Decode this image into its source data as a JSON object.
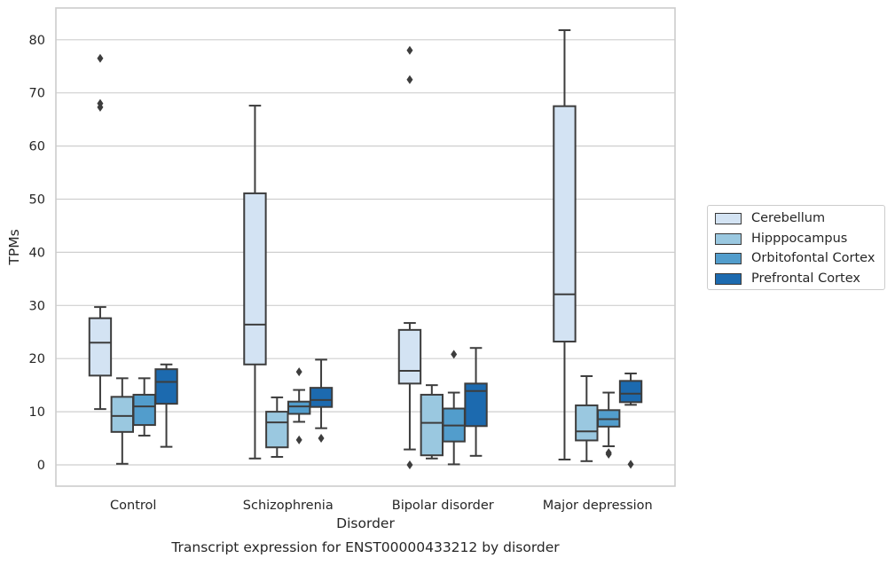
{
  "chart_data": {
    "type": "boxplot",
    "title": "",
    "caption": "Transcript expression for ENST00000433212 by disorder",
    "xlabel": "Disorder",
    "ylabel": "TPMs",
    "ylim": [
      -4,
      86
    ],
    "yticks": [
      0,
      10,
      20,
      30,
      40,
      50,
      60,
      70,
      80
    ],
    "grid": "horizontal",
    "legend_position": "right",
    "categories": [
      "Control",
      "Schizophrenia",
      "Bipolar disorder",
      "Major depression"
    ],
    "series": [
      {
        "name": "Cerebellum",
        "color": "#d3e3f3",
        "boxes": [
          {
            "whislo": 10.5,
            "q1": 16.8,
            "med": 23.0,
            "q3": 27.6,
            "whishi": 29.7,
            "fliers": [
              67.3,
              68.0,
              76.5
            ]
          },
          {
            "whislo": 1.2,
            "q1": 18.9,
            "med": 26.4,
            "q3": 51.1,
            "whishi": 67.6,
            "fliers": []
          },
          {
            "whislo": 2.9,
            "q1": 15.3,
            "med": 17.7,
            "q3": 25.4,
            "whishi": 26.7,
            "fliers": [
              0.0,
              72.5,
              78.0
            ]
          },
          {
            "whislo": 1.0,
            "q1": 23.2,
            "med": 32.1,
            "q3": 67.5,
            "whishi": 81.8,
            "fliers": []
          }
        ]
      },
      {
        "name": "Hipppocampus",
        "color": "#9ac8e0",
        "boxes": [
          {
            "whislo": 0.2,
            "q1": 6.2,
            "med": 9.2,
            "q3": 12.8,
            "whishi": 16.3,
            "fliers": []
          },
          {
            "whislo": 1.5,
            "q1": 3.3,
            "med": 8.0,
            "q3": 10.0,
            "whishi": 12.7,
            "fliers": []
          },
          {
            "whislo": 1.2,
            "q1": 1.8,
            "med": 7.9,
            "q3": 13.2,
            "whishi": 15.0,
            "fliers": []
          },
          {
            "whislo": 0.7,
            "q1": 4.6,
            "med": 6.3,
            "q3": 11.2,
            "whishi": 16.7,
            "fliers": []
          }
        ]
      },
      {
        "name": "Orbitofontal Cortex",
        "color": "#529dcc",
        "boxes": [
          {
            "whislo": 5.5,
            "q1": 7.5,
            "med": 11.0,
            "q3": 13.2,
            "whishi": 16.3,
            "fliers": []
          },
          {
            "whislo": 8.1,
            "q1": 9.6,
            "med": 11.0,
            "q3": 11.9,
            "whishi": 14.1,
            "fliers": [
              4.7,
              17.5
            ]
          },
          {
            "whislo": 0.1,
            "q1": 4.4,
            "med": 7.4,
            "q3": 10.6,
            "whishi": 13.6,
            "fliers": [
              20.8
            ]
          },
          {
            "whislo": 3.5,
            "q1": 7.2,
            "med": 8.6,
            "q3": 10.3,
            "whishi": 13.6,
            "fliers": [
              2.0,
              2.3
            ]
          }
        ]
      },
      {
        "name": "Prefrontal Cortex",
        "color": "#1c6aaf",
        "boxes": [
          {
            "whislo": 3.4,
            "q1": 11.5,
            "med": 15.6,
            "q3": 18.0,
            "whishi": 18.9,
            "fliers": []
          },
          {
            "whislo": 6.9,
            "q1": 10.9,
            "med": 12.2,
            "q3": 14.5,
            "whishi": 19.8,
            "fliers": [
              5.0
            ]
          },
          {
            "whislo": 1.7,
            "q1": 7.3,
            "med": 13.9,
            "q3": 15.3,
            "whishi": 22.0,
            "fliers": []
          },
          {
            "whislo": 11.3,
            "q1": 11.8,
            "med": 13.4,
            "q3": 15.8,
            "whishi": 17.2,
            "fliers": [
              0.1
            ]
          }
        ]
      }
    ]
  }
}
